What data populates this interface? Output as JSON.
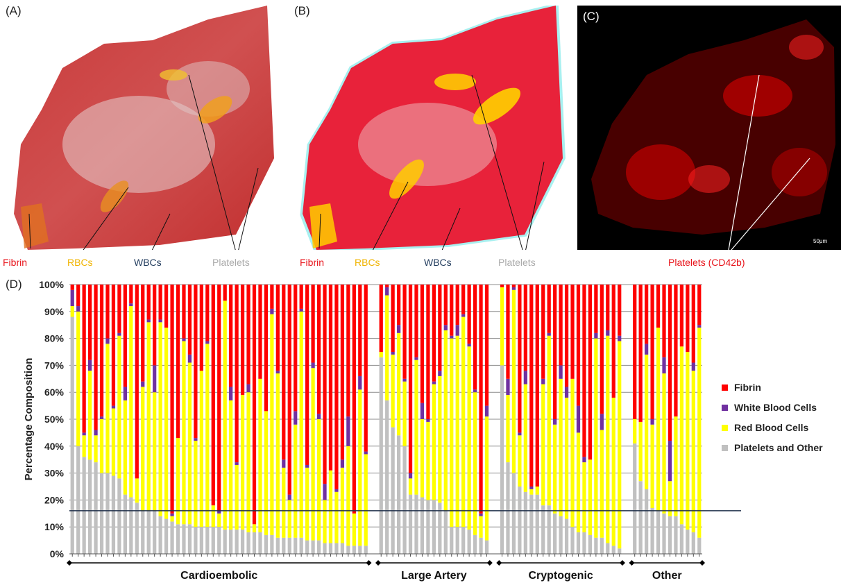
{
  "panels": {
    "a": {
      "label": "(A)",
      "captions": [
        {
          "text": "Fibrin",
          "color": "#e8131a"
        },
        {
          "text": "RBCs",
          "color": "#f0b400"
        },
        {
          "text": "WBCs",
          "color": "#1f3a5c"
        },
        {
          "text": "Platelets",
          "color": "#aaaaaa"
        }
      ]
    },
    "b": {
      "label": "(B)",
      "captions": [
        {
          "text": "Fibrin",
          "color": "#e8131a"
        },
        {
          "text": "RBCs",
          "color": "#f0b400"
        },
        {
          "text": "WBCs",
          "color": "#1f3a5c"
        },
        {
          "text": "Platelets",
          "color": "#aaaaaa"
        }
      ]
    },
    "c": {
      "label": "(C)",
      "scale_bar": "50μm",
      "caption": {
        "text": "Platelets (CD42b)",
        "color": "#e8131a"
      }
    },
    "d": {
      "label": "(D)"
    }
  },
  "chart_data": {
    "type": "bar",
    "stacked": true,
    "ylabel": "Percentage Composition",
    "ylim": [
      0,
      100
    ],
    "yticks": [
      "0%",
      "10%",
      "20%",
      "30%",
      "40%",
      "50%",
      "60%",
      "70%",
      "80%",
      "90%",
      "100%"
    ],
    "reference_line_y": 16,
    "grid": true,
    "legend_position": "right",
    "series": [
      {
        "name": "Platelets and Other",
        "color": "#c0c0c0"
      },
      {
        "name": "Red Blood Cells",
        "color": "#ffff00"
      },
      {
        "name": "White Blood Cells",
        "color": "#7030a0"
      },
      {
        "name": "Fibrin",
        "color": "#ff0000"
      }
    ],
    "groups": [
      {
        "name": "Cardioembolic",
        "bars": [
          [
            88,
            4,
            6,
            2
          ],
          [
            40,
            50,
            2,
            8
          ],
          [
            36,
            8,
            1,
            55
          ],
          [
            35,
            33,
            4,
            28
          ],
          [
            34,
            10,
            2,
            54
          ],
          [
            30,
            20,
            1,
            49
          ],
          [
            30,
            48,
            2,
            20
          ],
          [
            29,
            25,
            1,
            45
          ],
          [
            28,
            53,
            1,
            18
          ],
          [
            22,
            35,
            5,
            38
          ],
          [
            21,
            71,
            1,
            7
          ],
          [
            19,
            9,
            0,
            72
          ],
          [
            16,
            46,
            2,
            36
          ],
          [
            16,
            70,
            1,
            13
          ],
          [
            16,
            44,
            10,
            30
          ],
          [
            14,
            72,
            1,
            13
          ],
          [
            13,
            71,
            0,
            16
          ],
          [
            12,
            2,
            1,
            85
          ],
          [
            11,
            32,
            0,
            57
          ],
          [
            11,
            68,
            1,
            20
          ],
          [
            11,
            60,
            3,
            26
          ],
          [
            10,
            32,
            1,
            57
          ],
          [
            10,
            58,
            0,
            32
          ],
          [
            10,
            68,
            1,
            21
          ],
          [
            10,
            8,
            0,
            82
          ],
          [
            10,
            5,
            1,
            84
          ],
          [
            9,
            85,
            0,
            6
          ],
          [
            9,
            48,
            5,
            38
          ],
          [
            9,
            24,
            1,
            66
          ],
          [
            9,
            50,
            0,
            41
          ],
          [
            8,
            52,
            3,
            37
          ],
          [
            8,
            3,
            0,
            89
          ],
          [
            8,
            57,
            0,
            35
          ],
          [
            7,
            46,
            0,
            47
          ],
          [
            7,
            82,
            2,
            9
          ],
          [
            6,
            61,
            1,
            32
          ],
          [
            6,
            26,
            3,
            65
          ],
          [
            6,
            14,
            2,
            78
          ],
          [
            6,
            42,
            5,
            47
          ],
          [
            6,
            84,
            1,
            9
          ],
          [
            5,
            27,
            1,
            67
          ],
          [
            5,
            64,
            2,
            29
          ],
          [
            5,
            45,
            2,
            48
          ],
          [
            4,
            16,
            6,
            74
          ],
          [
            4,
            27,
            0,
            69
          ],
          [
            4,
            19,
            1,
            76
          ],
          [
            4,
            28,
            3,
            65
          ],
          [
            3,
            37,
            11,
            49
          ],
          [
            3,
            12,
            0,
            85
          ],
          [
            3,
            58,
            5,
            34
          ],
          [
            3,
            34,
            1,
            62
          ]
        ]
      },
      {
        "name": "Large Artery",
        "bars": [
          [
            73,
            2,
            0,
            25
          ],
          [
            57,
            39,
            3,
            1
          ],
          [
            47,
            27,
            1,
            25
          ],
          [
            44,
            38,
            3,
            15
          ],
          [
            40,
            24,
            1,
            35
          ],
          [
            22,
            6,
            2,
            70
          ],
          [
            22,
            50,
            1,
            27
          ],
          [
            21,
            29,
            6,
            44
          ],
          [
            20,
            29,
            1,
            50
          ],
          [
            20,
            43,
            1,
            36
          ],
          [
            19,
            47,
            2,
            32
          ],
          [
            16,
            67,
            2,
            15
          ],
          [
            10,
            70,
            1,
            19
          ],
          [
            10,
            71,
            4,
            15
          ],
          [
            10,
            78,
            1,
            11
          ],
          [
            9,
            68,
            1,
            22
          ],
          [
            7,
            53,
            1,
            39
          ],
          [
            6,
            8,
            1,
            85
          ],
          [
            5,
            46,
            4,
            45
          ]
        ]
      },
      {
        "name": "Cryptogenic",
        "bars": [
          [
            70,
            29,
            0,
            1
          ],
          [
            34,
            25,
            6,
            35
          ],
          [
            30,
            68,
            1,
            1
          ],
          [
            25,
            19,
            1,
            55
          ],
          [
            23,
            40,
            5,
            32
          ],
          [
            22,
            2,
            1,
            75
          ],
          [
            22,
            3,
            0,
            75
          ],
          [
            18,
            45,
            2,
            35
          ],
          [
            18,
            63,
            1,
            18
          ],
          [
            15,
            33,
            2,
            50
          ],
          [
            14,
            51,
            5,
            30
          ],
          [
            13,
            45,
            4,
            38
          ],
          [
            10,
            55,
            0,
            35
          ],
          [
            8,
            37,
            10,
            45
          ],
          [
            8,
            26,
            2,
            64
          ],
          [
            7,
            28,
            0,
            65
          ],
          [
            6,
            74,
            2,
            18
          ],
          [
            6,
            40,
            6,
            48
          ],
          [
            4,
            77,
            2,
            17
          ],
          [
            3,
            55,
            0,
            42
          ],
          [
            2,
            77,
            2,
            19
          ]
        ]
      },
      {
        "name": "Other",
        "bars": [
          [
            41,
            9,
            0,
            50
          ],
          [
            27,
            22,
            0,
            51
          ],
          [
            24,
            50,
            4,
            22
          ],
          [
            17,
            31,
            2,
            50
          ],
          [
            16,
            68,
            0,
            16
          ],
          [
            15,
            52,
            6,
            27
          ],
          [
            14,
            13,
            15,
            58
          ],
          [
            14,
            37,
            0,
            49
          ],
          [
            11,
            66,
            0,
            23
          ],
          [
            9,
            66,
            0,
            25
          ],
          [
            8,
            60,
            3,
            29
          ],
          [
            6,
            78,
            1,
            15
          ]
        ]
      }
    ]
  }
}
